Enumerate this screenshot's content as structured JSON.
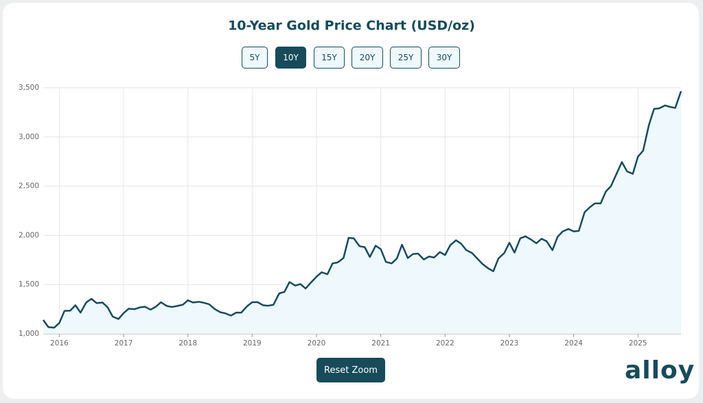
{
  "chart_data": {
    "type": "line",
    "title": "10-Year Gold Price Chart (USD/oz)",
    "x": [
      2015.75,
      2015.83,
      2015.92,
      2016.0,
      2016.08,
      2016.17,
      2016.25,
      2016.33,
      2016.42,
      2016.5,
      2016.58,
      2016.67,
      2016.75,
      2016.83,
      2016.92,
      2017.0,
      2017.08,
      2017.17,
      2017.25,
      2017.33,
      2017.42,
      2017.5,
      2017.58,
      2017.67,
      2017.75,
      2017.83,
      2017.92,
      2018.0,
      2018.08,
      2018.17,
      2018.25,
      2018.33,
      2018.42,
      2018.5,
      2018.58,
      2018.67,
      2018.75,
      2018.83,
      2018.92,
      2019.0,
      2019.08,
      2019.17,
      2019.25,
      2019.33,
      2019.42,
      2019.5,
      2019.58,
      2019.67,
      2019.75,
      2019.83,
      2019.92,
      2020.0,
      2020.08,
      2020.17,
      2020.25,
      2020.33,
      2020.42,
      2020.5,
      2020.58,
      2020.67,
      2020.75,
      2020.83,
      2020.92,
      2021.0,
      2021.08,
      2021.17,
      2021.25,
      2021.33,
      2021.42,
      2021.5,
      2021.58,
      2021.67,
      2021.75,
      2021.83,
      2021.92,
      2022.0,
      2022.08,
      2022.17,
      2022.25,
      2022.33,
      2022.42,
      2022.5,
      2022.58,
      2022.67,
      2022.75,
      2022.83,
      2022.92,
      2023.0,
      2023.08,
      2023.17,
      2023.25,
      2023.33,
      2023.42,
      2023.5,
      2023.58,
      2023.67,
      2023.75,
      2023.83,
      2023.92,
      2024.0,
      2024.08,
      2024.17,
      2024.25,
      2024.33,
      2024.42,
      2024.5,
      2024.58,
      2024.67,
      2024.75,
      2024.83,
      2024.92,
      2025.0,
      2025.08,
      2025.17,
      2025.25,
      2025.33,
      2025.42,
      2025.5,
      2025.58,
      2025.67
    ],
    "values": [
      1140,
      1068,
      1062,
      1110,
      1232,
      1235,
      1290,
      1215,
      1320,
      1355,
      1312,
      1318,
      1270,
      1175,
      1150,
      1210,
      1255,
      1250,
      1268,
      1275,
      1245,
      1275,
      1320,
      1283,
      1272,
      1282,
      1295,
      1340,
      1318,
      1325,
      1315,
      1300,
      1250,
      1220,
      1208,
      1185,
      1215,
      1215,
      1280,
      1320,
      1322,
      1290,
      1285,
      1295,
      1410,
      1425,
      1525,
      1490,
      1505,
      1460,
      1525,
      1580,
      1625,
      1605,
      1715,
      1725,
      1770,
      1975,
      1970,
      1890,
      1880,
      1780,
      1895,
      1860,
      1730,
      1715,
      1765,
      1905,
      1770,
      1810,
      1815,
      1755,
      1785,
      1775,
      1830,
      1800,
      1900,
      1950,
      1915,
      1850,
      1820,
      1765,
      1710,
      1665,
      1635,
      1765,
      1820,
      1925,
      1825,
      1970,
      1990,
      1960,
      1920,
      1965,
      1940,
      1850,
      1985,
      2040,
      2065,
      2040,
      2045,
      2235,
      2285,
      2325,
      2325,
      2445,
      2500,
      2630,
      2745,
      2650,
      2625,
      2800,
      2860,
      3120,
      3285,
      3290,
      3320,
      3305,
      3295,
      3465
    ],
    "color": "#174b5a",
    "fill": "#eef8fd",
    "xlim": [
      2015.75,
      2025.67
    ],
    "xticks": [
      2016,
      2017,
      2018,
      2019,
      2020,
      2021,
      2022,
      2023,
      2024,
      2025
    ],
    "ylim": [
      1000,
      3500
    ],
    "yticks": [
      {
        "value": 1000,
        "label": "1,000"
      },
      {
        "value": 1500,
        "label": "1,500"
      },
      {
        "value": 2000,
        "label": "2,000"
      },
      {
        "value": 2500,
        "label": "2,500"
      },
      {
        "value": 3000,
        "label": "3,000"
      },
      {
        "value": 3500,
        "label": "3,500"
      }
    ],
    "grid": true
  },
  "controls": {
    "ranges": [
      "5Y",
      "10Y",
      "15Y",
      "20Y",
      "25Y",
      "30Y"
    ],
    "selected": 1,
    "reset": "Reset Zoom"
  },
  "brand": "alloy"
}
